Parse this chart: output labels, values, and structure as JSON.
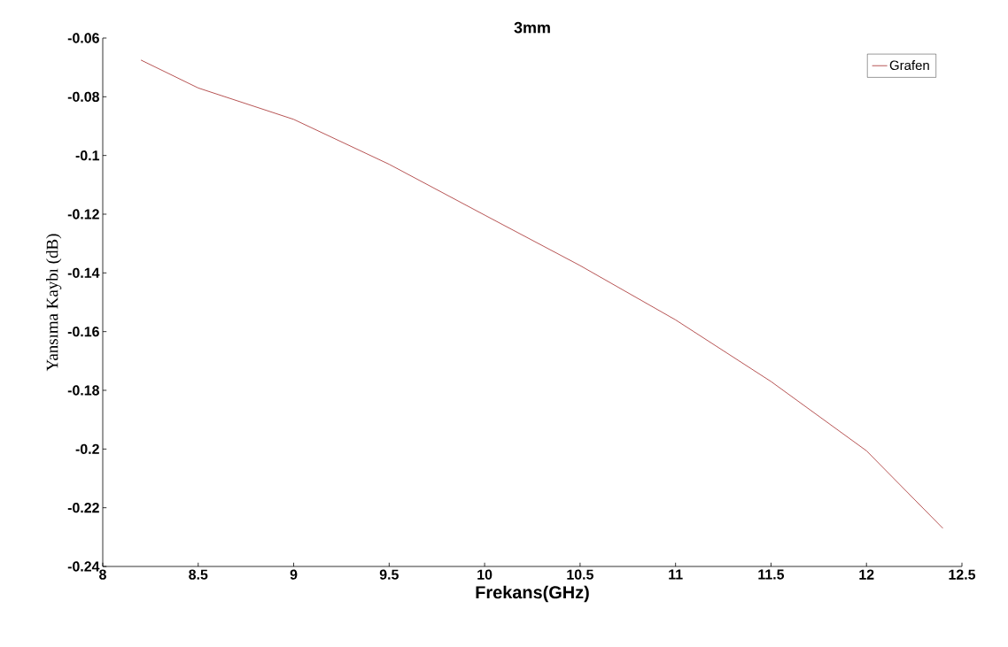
{
  "chart_data": {
    "type": "line",
    "title": "3mm",
    "xlabel": "Frekans(GHz)",
    "ylabel": "Yansıma Kaybı (dB)",
    "x": [
      8.2,
      8.5,
      9,
      9.5,
      10,
      10.5,
      11,
      11.5,
      12,
      12.4
    ],
    "series": [
      {
        "name": "Grafen",
        "color": "#a52a2a",
        "values": [
          -0.0675,
          -0.077,
          -0.0877,
          -0.103,
          -0.1203,
          -0.1375,
          -0.156,
          -0.177,
          -0.2006,
          -0.227
        ]
      }
    ],
    "xlim": [
      8,
      12.5
    ],
    "ylim": [
      -0.24,
      -0.06
    ],
    "xticks": [
      8,
      8.5,
      9,
      9.5,
      10,
      10.5,
      11,
      11.5,
      12,
      12.5
    ],
    "yticks": [
      -0.24,
      -0.22,
      -0.2,
      -0.18,
      -0.16,
      -0.14,
      -0.12,
      -0.1,
      -0.08,
      -0.06
    ],
    "grid": false,
    "legend": "top right",
    "marker": "none",
    "line_style": "solid"
  }
}
